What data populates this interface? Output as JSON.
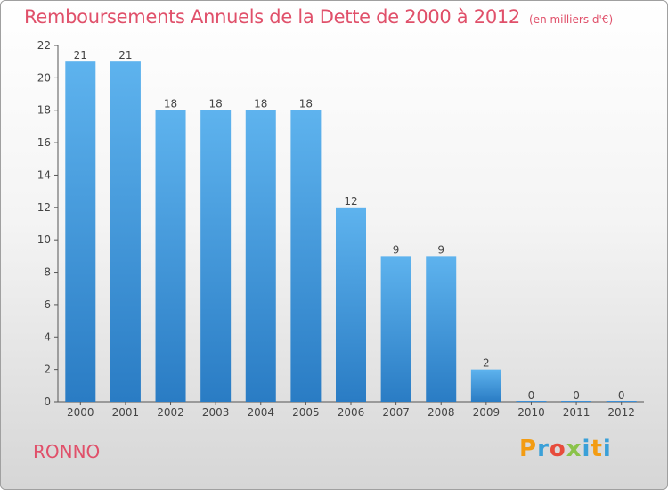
{
  "chart_data": {
    "type": "bar",
    "title": "Remboursements Annuels de la Dette de 2000 à 2012",
    "subtitle": "(en milliers d'€)",
    "xlabel": "",
    "ylabel": "",
    "categories": [
      "2000",
      "2001",
      "2002",
      "2003",
      "2004",
      "2005",
      "2006",
      "2007",
      "2008",
      "2009",
      "2010",
      "2011",
      "2012"
    ],
    "values": [
      21,
      21,
      18,
      18,
      18,
      18,
      12,
      9,
      9,
      2,
      0,
      0,
      0
    ],
    "ylim": [
      0,
      22
    ],
    "yticks": [
      0,
      2,
      4,
      6,
      8,
      10,
      12,
      14,
      16,
      18,
      20,
      22
    ],
    "grid": false,
    "bar_color": "#3d8fd6"
  },
  "footer": {
    "commune": "RONNO",
    "logo_text": "Proxiti",
    "logo_colors": [
      "#f39c12",
      "#3aa0d8",
      "#e74c3c",
      "#8bc34a",
      "#3aa0d8",
      "#f39c12",
      "#3aa0d8"
    ]
  }
}
